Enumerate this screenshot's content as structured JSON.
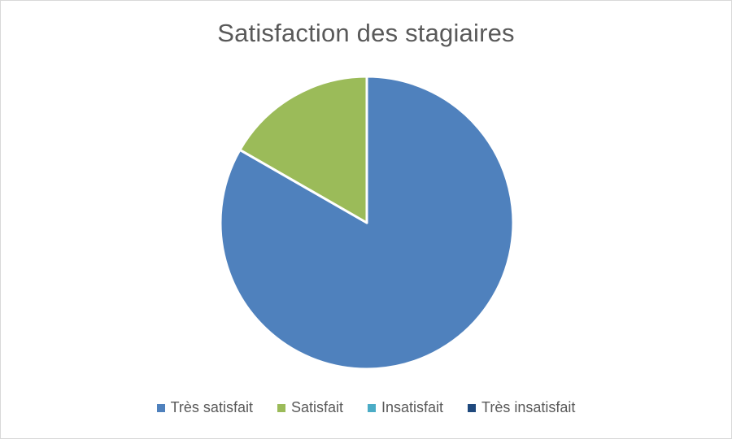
{
  "chart_data": {
    "type": "pie",
    "title": "Satisfaction des stagiaires",
    "categories": [
      "Très satisfait",
      "Satisfait",
      "Insatisfait",
      "Très insatisfait"
    ],
    "values": [
      83.3,
      16.7,
      0,
      0
    ],
    "colors": [
      "#4f81bd",
      "#9bbb59",
      "#4bacc6",
      "#1f497d"
    ],
    "slice_border_color": "#ffffff",
    "legend_position": "bottom",
    "start_angle_deg": 0,
    "direction": "clockwise"
  }
}
